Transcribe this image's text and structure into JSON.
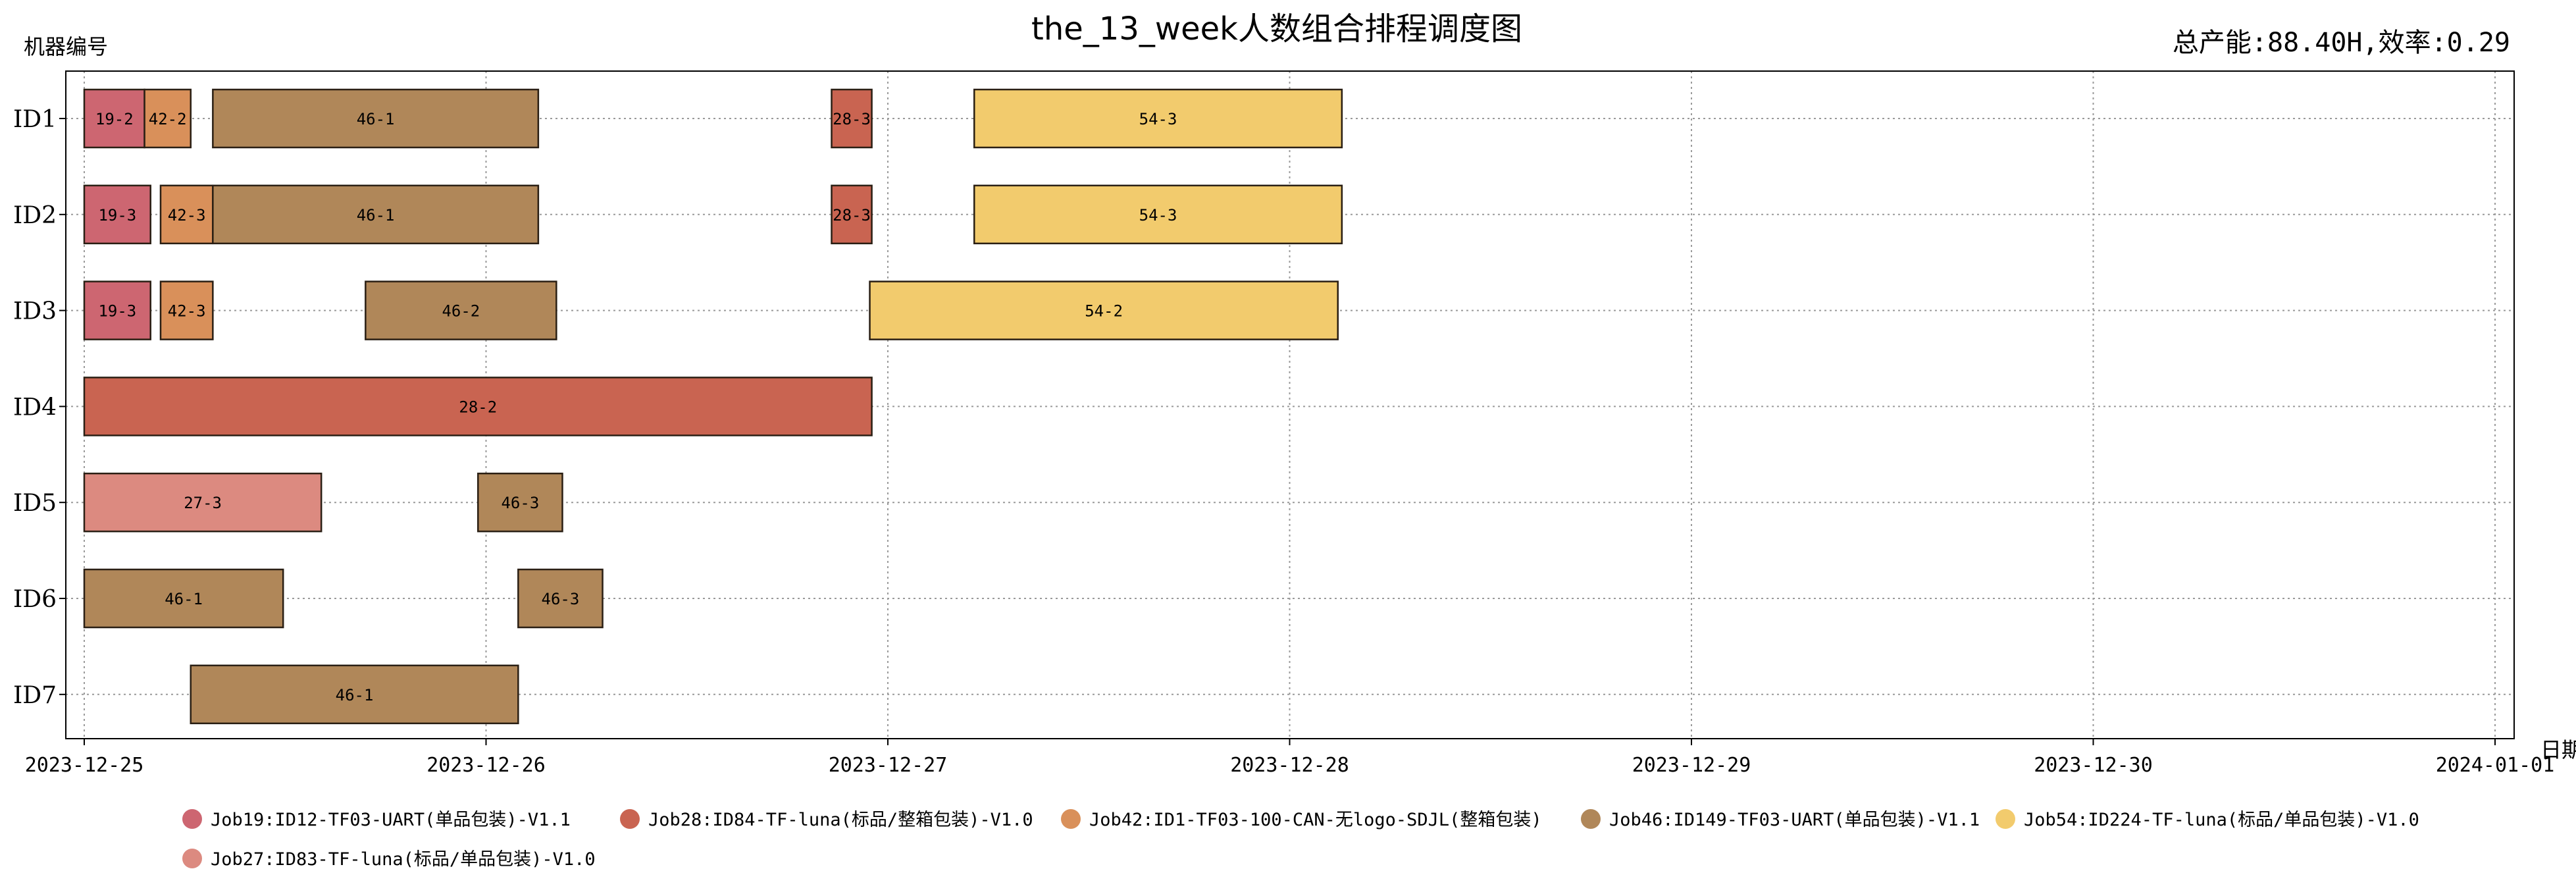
{
  "chart_data": {
    "type": "gantt",
    "title": "the_13_week人数组合排程调度图",
    "subtitle": "总产能:88.40H,效率:0.29",
    "ylabel": "机器编号",
    "xlabel": "日期",
    "x_ticks": [
      "2023-12-25",
      "2023-12-26",
      "2023-12-27",
      "2023-12-28",
      "2023-12-29",
      "2023-12-30",
      "2024-01-01"
    ],
    "xlim_days": [
      -0.05,
      6.05
    ],
    "machines": [
      "ID1",
      "ID2",
      "ID3",
      "ID4",
      "ID5",
      "ID6",
      "ID7"
    ],
    "grid": true,
    "legend_position": "bottom",
    "series": [
      {
        "name": "Job19:ID12-TF03-UART(单品包装)-V1.1",
        "color": "#cd6671"
      },
      {
        "name": "Job28:ID84-TF-luna(标品/整箱包装)-V1.0",
        "color": "#c96451"
      },
      {
        "name": "Job42:ID1-TF03-100-CAN-无logo-SDJL(整箱包装)",
        "color": "#d9905a"
      },
      {
        "name": "Job46:ID149-TF03-UART(单品包装)-V1.1",
        "color": "#b08759"
      },
      {
        "name": "Job54:ID224-TF-luna(标品/单品包装)-V1.0",
        "color": "#f2cb6d"
      },
      {
        "name": "Job27:ID83-TF-luna(标品/单品包装)-V1.0",
        "color": "#dc8a80"
      }
    ],
    "tasks": [
      {
        "machine": "ID1",
        "label": "19-2",
        "series": 0,
        "start": 0.0,
        "end": 0.15
      },
      {
        "machine": "ID1",
        "label": "42-2",
        "series": 2,
        "start": 0.15,
        "end": 0.265
      },
      {
        "machine": "ID1",
        "label": "46-1",
        "series": 3,
        "start": 0.32,
        "end": 1.13
      },
      {
        "machine": "ID1",
        "label": "28-3",
        "series": 1,
        "start": 1.86,
        "end": 1.96
      },
      {
        "machine": "ID1",
        "label": "54-3",
        "series": 4,
        "start": 2.215,
        "end": 3.13
      },
      {
        "machine": "ID2",
        "label": "19-3",
        "series": 0,
        "start": 0.0,
        "end": 0.165
      },
      {
        "machine": "ID2",
        "label": "42-3",
        "series": 2,
        "start": 0.19,
        "end": 0.32
      },
      {
        "machine": "ID2",
        "label": "46-1",
        "series": 3,
        "start": 0.32,
        "end": 1.13
      },
      {
        "machine": "ID2",
        "label": "28-3",
        "series": 1,
        "start": 1.86,
        "end": 1.96
      },
      {
        "machine": "ID2",
        "label": "54-3",
        "series": 4,
        "start": 2.215,
        "end": 3.13
      },
      {
        "machine": "ID3",
        "label": "19-3",
        "series": 0,
        "start": 0.0,
        "end": 0.165
      },
      {
        "machine": "ID3",
        "label": "42-3",
        "series": 2,
        "start": 0.19,
        "end": 0.32
      },
      {
        "machine": "ID3",
        "label": "46-2",
        "series": 3,
        "start": 0.7,
        "end": 1.175
      },
      {
        "machine": "ID3",
        "label": "54-2",
        "series": 4,
        "start": 1.955,
        "end": 3.12
      },
      {
        "machine": "ID4",
        "label": "28-2",
        "series": 1,
        "start": 0.0,
        "end": 1.96
      },
      {
        "machine": "ID5",
        "label": "27-3",
        "series": 5,
        "start": 0.0,
        "end": 0.59
      },
      {
        "machine": "ID5",
        "label": "46-3",
        "series": 3,
        "start": 0.98,
        "end": 1.19
      },
      {
        "machine": "ID6",
        "label": "46-1",
        "series": 3,
        "start": 0.0,
        "end": 0.495
      },
      {
        "machine": "ID6",
        "label": "46-3",
        "series": 3,
        "start": 1.08,
        "end": 1.29
      },
      {
        "machine": "ID7",
        "label": "46-1",
        "series": 3,
        "start": 0.265,
        "end": 1.08
      }
    ]
  }
}
